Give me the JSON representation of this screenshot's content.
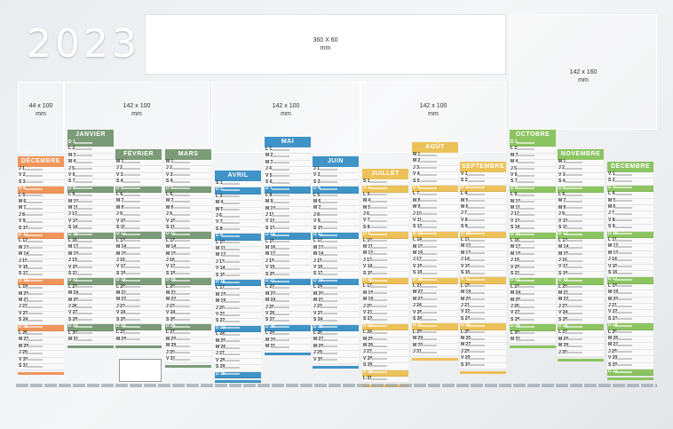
{
  "year": "2023",
  "placeholders": [
    {
      "id": "top-banner",
      "label": "360 X 60\nmm"
    },
    {
      "id": "left-slot",
      "label": "44 x 100\nmm"
    },
    {
      "id": "slot-a",
      "label": "142 x 100\nmm"
    },
    {
      "id": "slot-b",
      "label": "142 x 100\nmm"
    },
    {
      "id": "slot-c",
      "label": "142 x 100\nmm"
    },
    {
      "id": "right-slot",
      "label": "142 x 160\nmm"
    }
  ],
  "months": [
    {
      "name": "DÉCEMBRE",
      "color": "#f0955a",
      "days": 31
    },
    {
      "name": "JANVIER",
      "color": "#7c9b78",
      "days": 31
    },
    {
      "name": "FÉVRIER",
      "color": "#7c9b78",
      "days": 28
    },
    {
      "name": "MARS",
      "color": "#7c9b78",
      "days": 31
    },
    {
      "name": "AVRIL",
      "color": "#3f93c6",
      "days": 30
    },
    {
      "name": "MAI",
      "color": "#3f93c6",
      "days": 31
    },
    {
      "name": "JUIN",
      "color": "#3f93c6",
      "days": 30
    },
    {
      "name": "JUILLET",
      "color": "#ecc158",
      "days": 31
    },
    {
      "name": "AOÛT",
      "color": "#ecc158",
      "days": 31
    },
    {
      "name": "SEPTEMBRE",
      "color": "#ecc158",
      "days": 30
    },
    {
      "name": "OCTOBRE",
      "color": "#8cc461",
      "days": 31
    },
    {
      "name": "NOVEMBRE",
      "color": "#8cc461",
      "days": 30
    },
    {
      "name": "DÉCEMBRE",
      "color": "#8cc461",
      "days": 31
    }
  ]
}
